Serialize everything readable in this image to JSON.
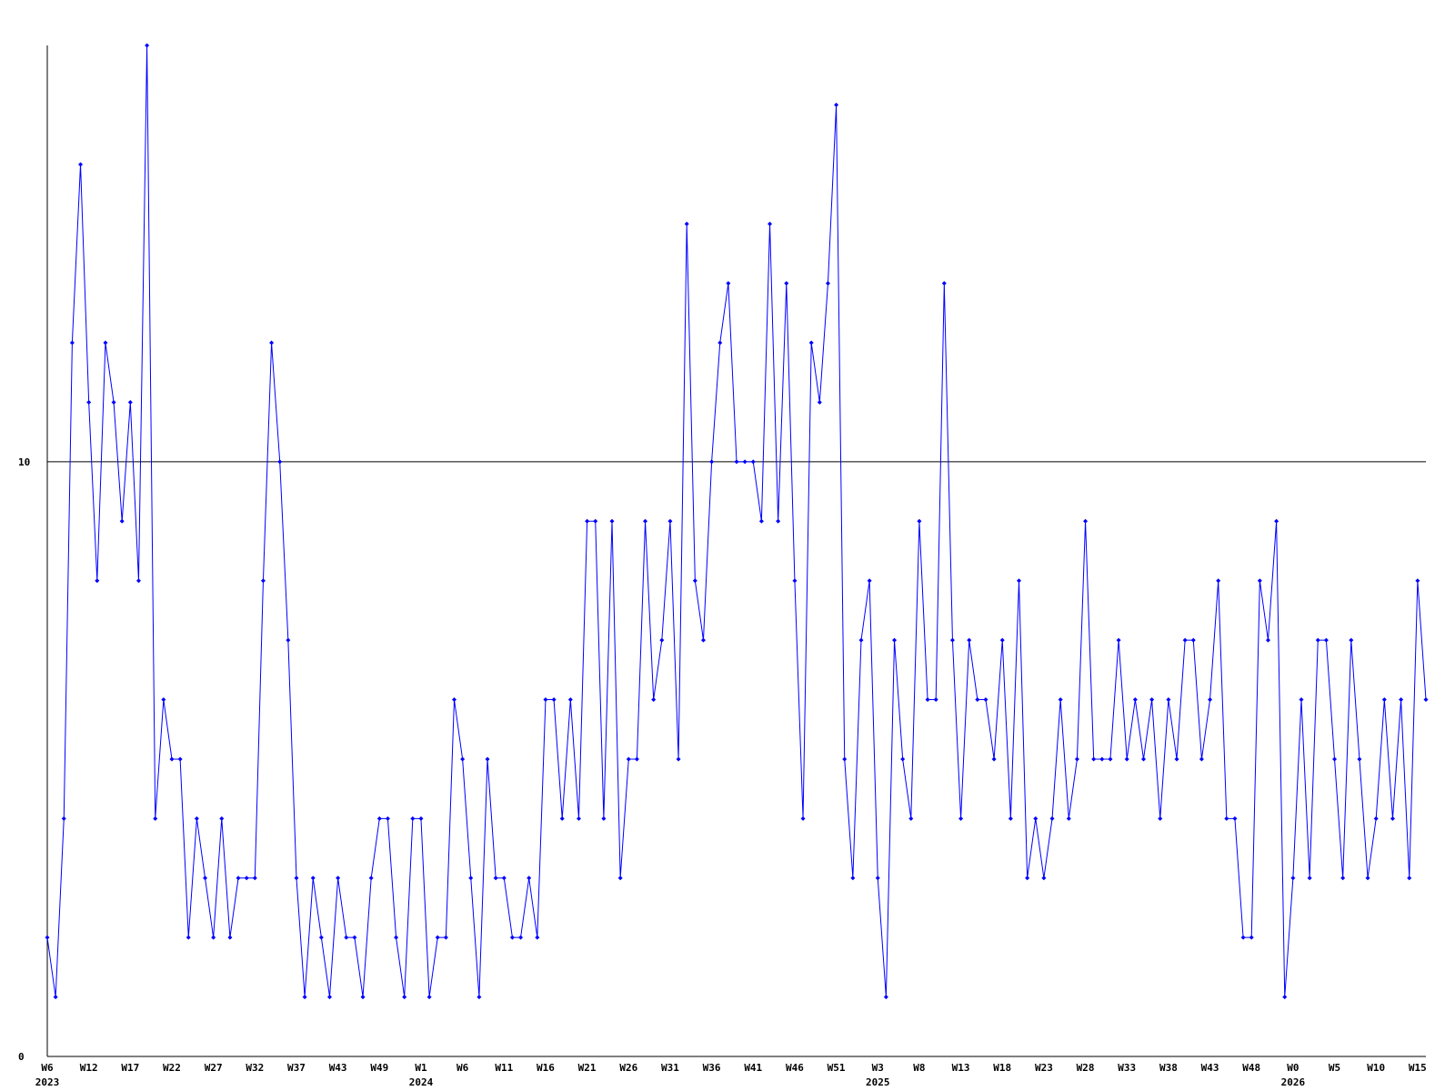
{
  "chart_data": {
    "type": "line",
    "categories": [
      "W6",
      null,
      null,
      null,
      null,
      "W12",
      null,
      null,
      null,
      null,
      "W17",
      null,
      null,
      null,
      null,
      "W22",
      null,
      null,
      null,
      null,
      "W27",
      null,
      null,
      null,
      null,
      "W32",
      null,
      null,
      null,
      null,
      "W37",
      null,
      null,
      null,
      null,
      "W43",
      null,
      null,
      null,
      null,
      "W49",
      null,
      null,
      null,
      null,
      "W1",
      null,
      null,
      null,
      null,
      "W6",
      null,
      null,
      null,
      null,
      "W11",
      null,
      null,
      null,
      null,
      "W16",
      null,
      null,
      null,
      null,
      "W21",
      null,
      null,
      null,
      null,
      "W26",
      null,
      null,
      null,
      null,
      "W31",
      null,
      null,
      null,
      null,
      "W36",
      null,
      null,
      null,
      null,
      "W41",
      null,
      null,
      null,
      null,
      "W46",
      null,
      null,
      null,
      null,
      "W51",
      null,
      null,
      null,
      null,
      "W3",
      null,
      null,
      null,
      null,
      "W8",
      null,
      null,
      null,
      null,
      "W13",
      null,
      null,
      null,
      null,
      "W18",
      null,
      null,
      null,
      null,
      "W23",
      null,
      null,
      null,
      null,
      "W28",
      null,
      null,
      null,
      null,
      "W33",
      null,
      null,
      null,
      null,
      "W38",
      null,
      null,
      null,
      null,
      "W43",
      null,
      null,
      null,
      null,
      "W48",
      null,
      null,
      null,
      null,
      "W0",
      null,
      null,
      null,
      null,
      "W5",
      null,
      null,
      null,
      null,
      "W10",
      null,
      null,
      null,
      null,
      "W15",
      null
    ],
    "years": [
      "2023",
      null,
      null,
      null,
      null,
      null,
      null,
      null,
      null,
      null,
      null,
      null,
      null,
      null,
      null,
      null,
      null,
      null,
      null,
      null,
      null,
      null,
      null,
      null,
      null,
      null,
      null,
      null,
      null,
      null,
      null,
      null,
      null,
      null,
      null,
      null,
      null,
      null,
      null,
      null,
      null,
      null,
      null,
      null,
      null,
      "2024",
      null,
      null,
      null,
      null,
      null,
      null,
      null,
      null,
      null,
      null,
      null,
      null,
      null,
      null,
      null,
      null,
      null,
      null,
      null,
      null,
      null,
      null,
      null,
      null,
      null,
      null,
      null,
      null,
      null,
      null,
      null,
      null,
      null,
      null,
      null,
      null,
      null,
      null,
      null,
      null,
      null,
      null,
      null,
      null,
      null,
      null,
      null,
      null,
      null,
      null,
      null,
      null,
      null,
      null,
      "2025",
      null,
      null,
      null,
      null,
      null,
      null,
      null,
      null,
      null,
      null,
      null,
      null,
      null,
      null,
      null,
      null,
      null,
      null,
      null,
      null,
      null,
      null,
      null,
      null,
      null,
      null,
      null,
      null,
      null,
      null,
      null,
      null,
      null,
      null,
      null,
      null,
      null,
      null,
      null,
      null,
      null,
      null,
      null,
      null,
      null,
      null,
      null,
      null,
      null,
      "2026",
      null,
      null,
      null,
      null,
      null,
      null,
      null,
      null,
      null,
      null,
      null,
      null,
      null,
      null,
      null,
      null
    ],
    "series": [
      {
        "color": "#0000ff",
        "values": [
          2,
          1,
          4,
          12,
          15,
          11,
          8,
          12,
          11,
          9,
          11,
          8,
          17,
          4,
          6,
          5,
          5,
          2,
          4,
          3,
          2,
          4,
          2,
          3,
          3,
          3,
          8,
          12,
          10,
          7,
          3,
          1,
          3,
          2,
          1,
          3,
          2,
          2,
          1,
          3,
          4,
          4,
          2,
          1,
          4,
          4,
          1,
          2,
          2,
          6,
          5,
          3,
          1,
          5,
          3,
          3,
          2,
          2,
          3,
          2,
          6,
          6,
          4,
          6,
          4,
          9,
          9,
          4,
          9,
          3,
          5,
          5,
          9,
          6,
          7,
          9,
          5,
          14,
          8,
          7,
          10,
          12,
          13,
          10,
          10,
          10,
          9,
          14,
          9,
          13,
          8,
          4,
          12,
          11,
          13,
          16,
          5,
          3,
          7,
          8,
          3,
          1,
          7,
          5,
          4,
          9,
          6,
          6,
          13,
          7,
          4,
          7,
          6,
          6,
          5,
          7,
          4,
          8,
          3,
          4,
          3,
          4,
          6,
          4,
          5,
          9,
          5,
          5,
          5,
          7,
          5,
          6,
          5,
          6,
          4,
          6,
          5,
          7,
          7,
          5,
          6,
          8,
          4,
          4,
          2,
          2,
          8,
          7,
          9,
          1,
          3,
          6,
          3,
          7,
          7,
          5,
          3,
          7,
          5,
          3,
          4,
          6,
          4,
          6,
          3,
          8,
          6
        ]
      }
    ],
    "ylim": [
      0,
      17
    ],
    "yticks": [
      0,
      10
    ],
    "grid": true
  }
}
